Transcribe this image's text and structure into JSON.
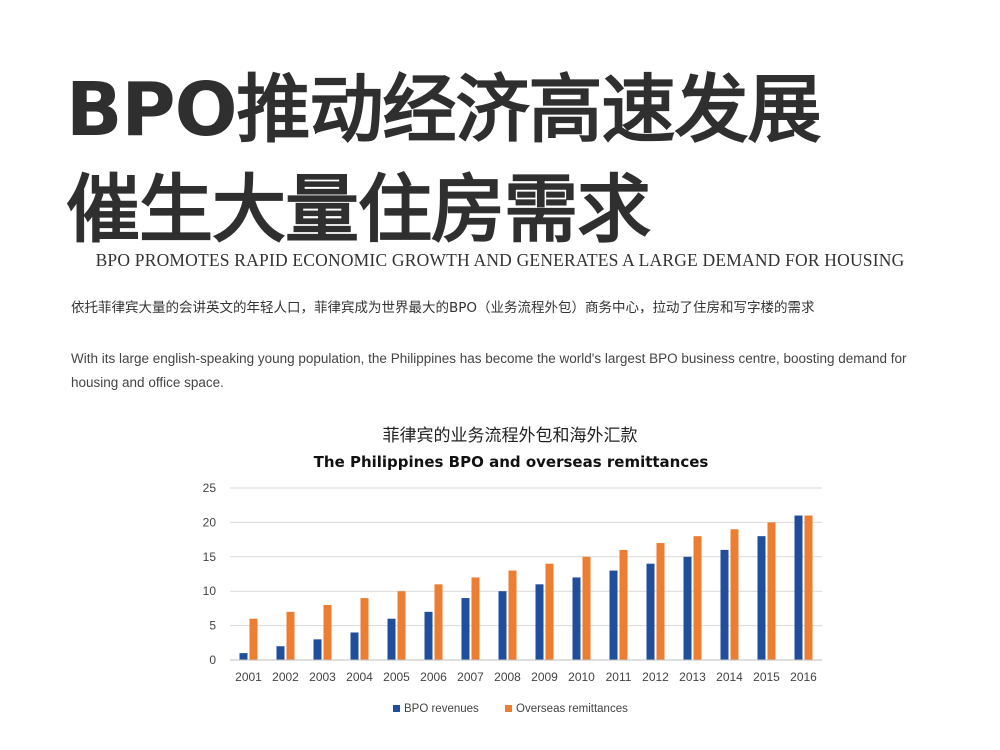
{
  "header": {
    "title_line1": "BPO推动经济高速发展",
    "title_line2": "催生大量住房需求",
    "subtitle_en": "BPO PROMOTES RAPID ECONOMIC GROWTH  AND GENERATES A LARGE DEMAND FOR HOUSING"
  },
  "body": {
    "desc_cn": "依托菲律宾大量的会讲英文的年轻人口，菲律宾成为世界最大的BPO（业务流程外包）商务中心，拉动了住房和写字楼的需求",
    "desc_en": "With its large english-speaking young population, the Philippines has become the world's largest BPO business centre, boosting demand for housing and office space."
  },
  "chart_data": {
    "type": "bar",
    "title": "菲律宾的业务流程外包和海外汇款",
    "subtitle": "The Philippines BPO and overseas remittances",
    "categories": [
      "2001",
      "2002",
      "2003",
      "2004",
      "2005",
      "2006",
      "2007",
      "2008",
      "2009",
      "2010",
      "2011",
      "2012",
      "2013",
      "2014",
      "2015",
      "2016"
    ],
    "series": [
      {
        "name": "BPO  revenues",
        "color": "#1f4e9c",
        "values": [
          1,
          2,
          3,
          4,
          6,
          7,
          9,
          10,
          11,
          12,
          13,
          14,
          15,
          16,
          18,
          21
        ]
      },
      {
        "name": "Overseas remittances",
        "color": "#ed7d31",
        "values": [
          6,
          7,
          8,
          9,
          10,
          11,
          12,
          13,
          14,
          15,
          16,
          17,
          18,
          19,
          20,
          21
        ]
      }
    ],
    "yticks": [
      "0",
      "5",
      "10",
      "15",
      "20",
      "25"
    ],
    "ylim": [
      0,
      25
    ],
    "grid": true,
    "legend_position": "bottom"
  }
}
